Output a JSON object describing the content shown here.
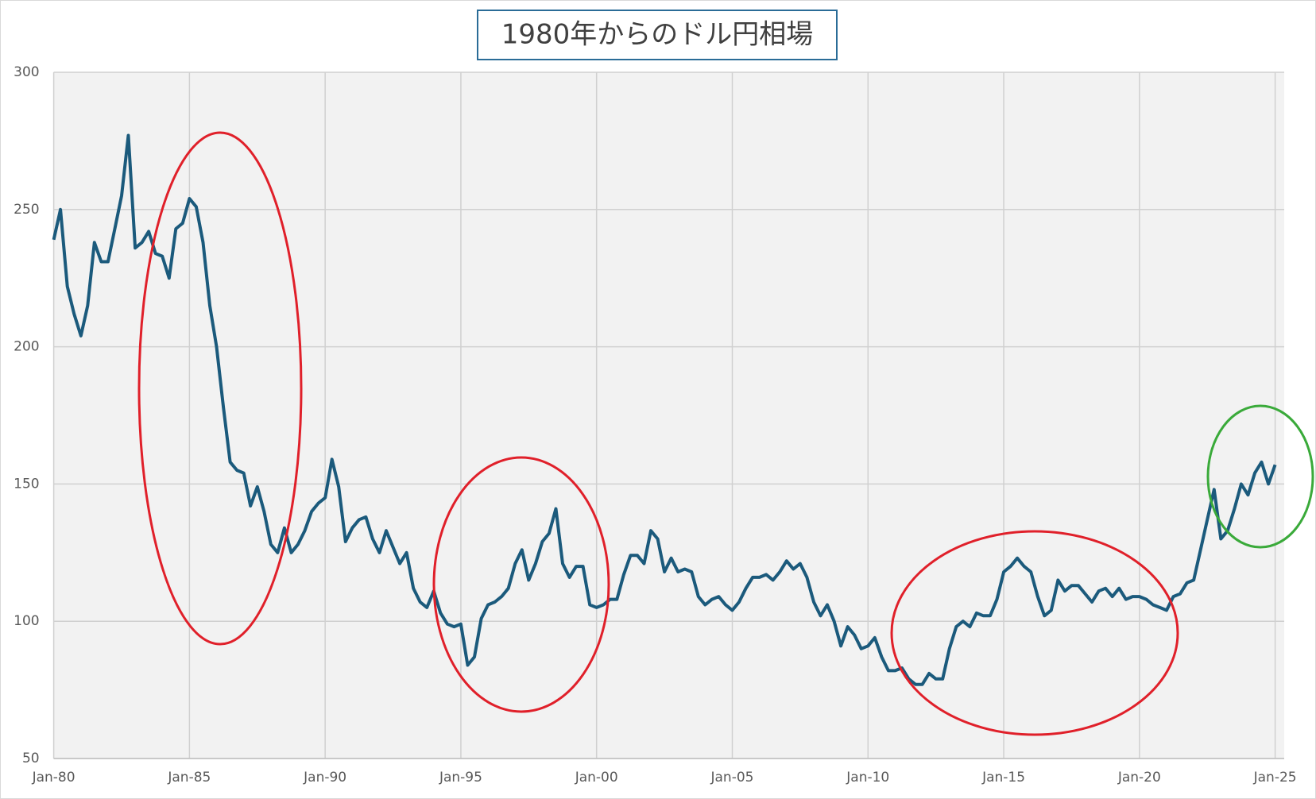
{
  "chart_data": {
    "type": "line",
    "title": "1980年からのドル円相場",
    "x": [
      "1980-01",
      "1980-04",
      "1980-07",
      "1980-10",
      "1981-01",
      "1981-04",
      "1981-07",
      "1981-10",
      "1982-01",
      "1982-04",
      "1982-07",
      "1982-10",
      "1983-01",
      "1983-04",
      "1983-07",
      "1983-10",
      "1984-01",
      "1984-04",
      "1984-07",
      "1984-10",
      "1985-01",
      "1985-04",
      "1985-07",
      "1985-10",
      "1986-01",
      "1986-04",
      "1986-07",
      "1986-10",
      "1987-01",
      "1987-04",
      "1987-07",
      "1987-10",
      "1988-01",
      "1988-04",
      "1988-07",
      "1988-10",
      "1989-01",
      "1989-04",
      "1989-07",
      "1989-10",
      "1990-01",
      "1990-04",
      "1990-07",
      "1990-10",
      "1991-01",
      "1991-04",
      "1991-07",
      "1991-10",
      "1992-01",
      "1992-04",
      "1992-07",
      "1992-10",
      "1993-01",
      "1993-04",
      "1993-07",
      "1993-10",
      "1994-01",
      "1994-04",
      "1994-07",
      "1994-10",
      "1995-01",
      "1995-04",
      "1995-07",
      "1995-10",
      "1996-01",
      "1996-04",
      "1996-07",
      "1996-10",
      "1997-01",
      "1997-04",
      "1997-07",
      "1997-10",
      "1998-01",
      "1998-04",
      "1998-07",
      "1998-10",
      "1999-01",
      "1999-04",
      "1999-07",
      "1999-10",
      "2000-01",
      "2000-04",
      "2000-07",
      "2000-10",
      "2001-01",
      "2001-04",
      "2001-07",
      "2001-10",
      "2002-01",
      "2002-04",
      "2002-07",
      "2002-10",
      "2003-01",
      "2003-04",
      "2003-07",
      "2003-10",
      "2004-01",
      "2004-04",
      "2004-07",
      "2004-10",
      "2005-01",
      "2005-04",
      "2005-07",
      "2005-10",
      "2006-01",
      "2006-04",
      "2006-07",
      "2006-10",
      "2007-01",
      "2007-04",
      "2007-07",
      "2007-10",
      "2008-01",
      "2008-04",
      "2008-07",
      "2008-10",
      "2009-01",
      "2009-04",
      "2009-07",
      "2009-10",
      "2010-01",
      "2010-04",
      "2010-07",
      "2010-10",
      "2011-01",
      "2011-04",
      "2011-07",
      "2011-10",
      "2012-01",
      "2012-04",
      "2012-07",
      "2012-10",
      "2013-01",
      "2013-04",
      "2013-07",
      "2013-10",
      "2014-01",
      "2014-04",
      "2014-07",
      "2014-10",
      "2015-01",
      "2015-04",
      "2015-07",
      "2015-10",
      "2016-01",
      "2016-04",
      "2016-07",
      "2016-10",
      "2017-01",
      "2017-04",
      "2017-07",
      "2017-10",
      "2018-01",
      "2018-04",
      "2018-07",
      "2018-10",
      "2019-01",
      "2019-04",
      "2019-07",
      "2019-10",
      "2020-01",
      "2020-04",
      "2020-07",
      "2020-10",
      "2021-01",
      "2021-04",
      "2021-07",
      "2021-10",
      "2022-01",
      "2022-04",
      "2022-07",
      "2022-10",
      "2023-01",
      "2023-04",
      "2023-07",
      "2023-10",
      "2024-01",
      "2024-04",
      "2024-07",
      "2024-10",
      "2025-01"
    ],
    "values": [
      239,
      250,
      222,
      212,
      204,
      215,
      238,
      231,
      231,
      243,
      255,
      277,
      236,
      238,
      242,
      234,
      233,
      225,
      243,
      245,
      254,
      251,
      238,
      215,
      200,
      178,
      158,
      155,
      154,
      142,
      149,
      140,
      128,
      125,
      134,
      125,
      128,
      133,
      140,
      143,
      145,
      159,
      149,
      129,
      134,
      137,
      138,
      130,
      125,
      133,
      127,
      121,
      125,
      112,
      107,
      105,
      111,
      103,
      99,
      98,
      99,
      84,
      87,
      101,
      106,
      107,
      109,
      112,
      121,
      126,
      115,
      121,
      129,
      132,
      141,
      121,
      116,
      120,
      120,
      106,
      105,
      106,
      108,
      108,
      117,
      124,
      124,
      121,
      133,
      130,
      118,
      123,
      118,
      119,
      118,
      109,
      106,
      108,
      109,
      106,
      104,
      107,
      112,
      116,
      116,
      117,
      115,
      118,
      122,
      119,
      121,
      116,
      107,
      102,
      106,
      100,
      91,
      98,
      95,
      90,
      91,
      94,
      87,
      82,
      82,
      83,
      79,
      77,
      77,
      81,
      79,
      79,
      90,
      98,
      100,
      98,
      103,
      102,
      102,
      108,
      118,
      120,
      123,
      120,
      118,
      109,
      102,
      104,
      115,
      111,
      113,
      113,
      110,
      107,
      111,
      112,
      109,
      112,
      108,
      109,
      109,
      108,
      106,
      105,
      104,
      109,
      110,
      114,
      115,
      126,
      137,
      148,
      130,
      133,
      141,
      150,
      146,
      154,
      158,
      150,
      157
    ],
    "color": "#1b5a7c",
    "xlim": [
      "1980-01",
      "2025-05"
    ],
    "xticks": [
      {
        "value": "1980-01",
        "label": "Jan-80"
      },
      {
        "value": "1985-01",
        "label": "Jan-85"
      },
      {
        "value": "1990-01",
        "label": "Jan-90"
      },
      {
        "value": "1995-01",
        "label": "Jan-95"
      },
      {
        "value": "2000-01",
        "label": "Jan-00"
      },
      {
        "value": "2005-01",
        "label": "Jan-05"
      },
      {
        "value": "2010-01",
        "label": "Jan-10"
      },
      {
        "value": "2015-01",
        "label": "Jan-15"
      },
      {
        "value": "2020-01",
        "label": "Jan-20"
      },
      {
        "value": "2025-01",
        "label": "Jan-25"
      }
    ],
    "ylim": [
      50,
      300
    ],
    "yticks": [
      50,
      100,
      150,
      200,
      250,
      300
    ],
    "grid": true
  }
}
